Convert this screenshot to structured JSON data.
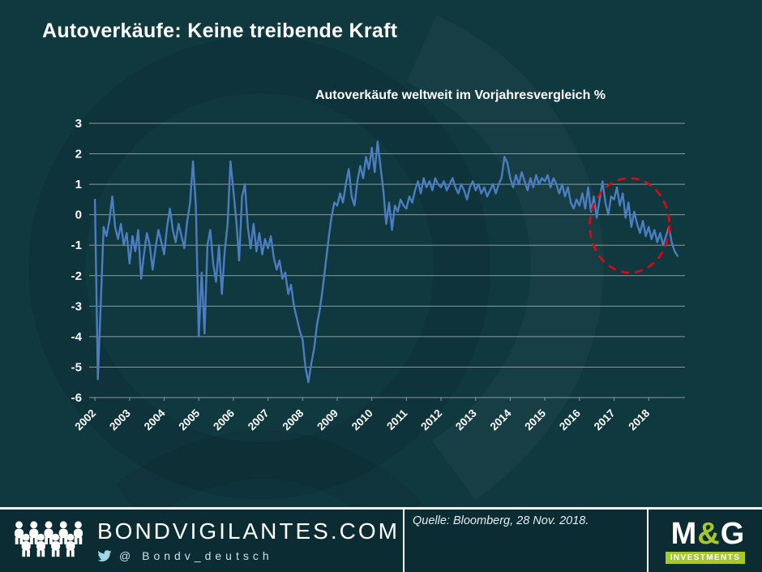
{
  "page": {
    "title": "Autoverkäufe: Keine treibende Kraft",
    "background_color": "#10383f"
  },
  "chart_data": {
    "type": "line",
    "title": "Autoverkäufe weltweit im Vorjahresvergleich %",
    "x_start_year": 2002,
    "points_per_year": 12,
    "ylim": [
      -6,
      3
    ],
    "y_ticks": [
      3,
      2,
      1,
      0,
      -1,
      -2,
      -3,
      -4,
      -5,
      -6
    ],
    "x_tick_labels": [
      "2002",
      "2003",
      "2004",
      "2005",
      "2006",
      "2007",
      "2008",
      "2009",
      "2010",
      "2011",
      "2012",
      "2013",
      "2014",
      "2015",
      "2016",
      "2017",
      "2018"
    ],
    "grid": "horizontal",
    "legend": "none",
    "line_color": "#4b7dc0",
    "values": [
      0.5,
      -5.4,
      -3.0,
      -0.4,
      -0.7,
      -0.2,
      0.6,
      -0.4,
      -0.8,
      -0.3,
      -1.0,
      -0.6,
      -1.6,
      -0.7,
      -1.2,
      -0.5,
      -2.1,
      -1.3,
      -0.6,
      -1.0,
      -1.8,
      -1.1,
      -0.5,
      -0.9,
      -1.3,
      -0.4,
      0.2,
      -0.5,
      -0.9,
      -0.3,
      -0.7,
      -1.1,
      -0.2,
      0.4,
      1.75,
      0.3,
      -4.0,
      -1.9,
      -3.9,
      -1.0,
      -0.5,
      -1.6,
      -2.2,
      -1.0,
      -2.6,
      -1.2,
      -0.3,
      1.75,
      0.8,
      -0.2,
      -1.5,
      0.6,
      1.0,
      -0.4,
      -1.1,
      -0.3,
      -1.2,
      -0.6,
      -1.3,
      -0.8,
      -1.1,
      -0.7,
      -1.4,
      -1.8,
      -1.5,
      -2.1,
      -1.9,
      -2.6,
      -2.3,
      -3.0,
      -3.4,
      -3.8,
      -4.1,
      -5.0,
      -5.5,
      -4.9,
      -4.4,
      -3.6,
      -3.1,
      -2.4,
      -1.6,
      -0.8,
      -0.1,
      0.4,
      0.3,
      0.7,
      0.4,
      1.0,
      1.5,
      0.6,
      0.3,
      1.1,
      1.6,
      1.2,
      1.9,
      1.5,
      2.2,
      1.4,
      2.4,
      1.6,
      0.8,
      -0.3,
      0.4,
      -0.5,
      0.3,
      0.1,
      0.5,
      0.3,
      0.2,
      0.6,
      0.4,
      0.8,
      1.1,
      0.7,
      1.2,
      0.9,
      1.1,
      0.8,
      1.2,
      1.0,
      0.9,
      1.1,
      0.8,
      1.0,
      1.2,
      0.9,
      0.7,
      1.0,
      0.8,
      0.5,
      0.9,
      1.1,
      0.8,
      1.0,
      0.7,
      0.9,
      0.6,
      0.8,
      1.0,
      0.7,
      1.0,
      1.2,
      1.9,
      1.7,
      1.2,
      0.9,
      1.3,
      1.0,
      1.4,
      1.1,
      0.8,
      1.2,
      0.9,
      1.3,
      1.0,
      1.2,
      1.1,
      1.3,
      0.9,
      1.2,
      1.0,
      0.7,
      1.0,
      0.6,
      0.9,
      0.4,
      0.2,
      0.5,
      0.3,
      0.7,
      0.2,
      0.9,
      0.1,
      0.6,
      -0.1,
      0.5,
      1.1,
      0.4,
      0.0,
      0.6,
      0.5,
      0.9,
      0.3,
      0.7,
      -0.1,
      0.4,
      -0.4,
      0.1,
      -0.3,
      -0.6,
      -0.2,
      -0.7,
      -0.4,
      -0.8,
      -0.5,
      -0.9,
      -0.6,
      -1.0,
      -0.7,
      -0.4,
      -0.9,
      -1.2,
      -1.35
    ],
    "annotation": {
      "type": "ellipse",
      "meaning": "highlight of recent weakness",
      "center_x_year": 2017.45,
      "center_y": -0.35,
      "radius_x_years": 1.15,
      "radius_y_units": 1.55,
      "color": "#e30613",
      "style": "dashed"
    }
  },
  "footer": {
    "brand": "BONDVIGILANTES.COM",
    "twitter_handle": "@ Bondv_deutsch",
    "source": "Quelle: Bloomberg, 28 Nov. 2018.",
    "logo": {
      "m": "M",
      "amp": "&",
      "g": "G",
      "sub": "INVESTMENTS",
      "green": "#a6c82d"
    }
  }
}
